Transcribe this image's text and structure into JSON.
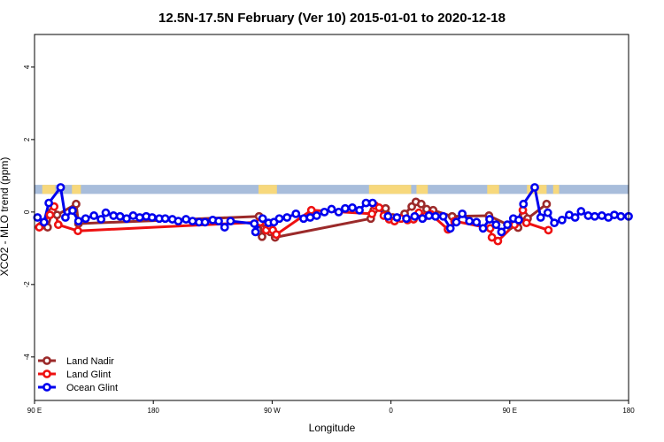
{
  "chart_data": {
    "type": "line",
    "title": "12.5N-17.5N February (Ver 10)   2015-01-01 to 2020-12-18",
    "xlabel": "Longitude",
    "ylabel": "XCO2 - MLO trend (ppm)",
    "xlim": [
      0,
      1
    ],
    "ylim": [
      -5.2,
      4.9
    ],
    "x_ticks": [
      {
        "value": 0.0,
        "label": "90 E"
      },
      {
        "value": 0.2,
        "label": "180"
      },
      {
        "value": 0.4,
        "label": "90 W"
      },
      {
        "value": 0.6,
        "label": "0"
      },
      {
        "value": 0.8,
        "label": "90 E"
      },
      {
        "value": 1.0,
        "label": "180"
      }
    ],
    "y_ticks": [
      -4,
      -2,
      0,
      2,
      4
    ],
    "y_tick_labels": [
      "-4",
      "-2",
      "0",
      "2",
      "4"
    ],
    "grid": false,
    "legend": "bottom-left",
    "land_band": {
      "y_range": [
        0.5,
        0.75
      ],
      "ocean_color": "#a8bddb",
      "land_color": "#f7d87c",
      "land_segments": [
        [
          0.013,
          0.035
        ],
        [
          0.063,
          0.078
        ],
        [
          0.377,
          0.408
        ],
        [
          0.563,
          0.634
        ],
        [
          0.643,
          0.662
        ],
        [
          0.762,
          0.782
        ],
        [
          0.829,
          0.862
        ],
        [
          0.873,
          0.883
        ]
      ]
    },
    "series": [
      {
        "name": "Land Nadir",
        "color": "#9b2a2a",
        "points": [
          [
            0.011,
            -0.38
          ],
          [
            0.022,
            -0.42
          ],
          [
            0.03,
            0.02
          ],
          [
            0.038,
            -0.08
          ],
          [
            0.07,
            0.22
          ],
          [
            0.074,
            -0.32
          ],
          [
            0.378,
            -0.12
          ],
          [
            0.383,
            -0.68
          ],
          [
            0.391,
            -0.44
          ],
          [
            0.397,
            -0.55
          ],
          [
            0.405,
            -0.7
          ],
          [
            0.566,
            -0.18
          ],
          [
            0.571,
            0.05
          ],
          [
            0.591,
            0.1
          ],
          [
            0.603,
            -0.15
          ],
          [
            0.623,
            -0.05
          ],
          [
            0.635,
            0.15
          ],
          [
            0.642,
            0.28
          ],
          [
            0.651,
            0.22
          ],
          [
            0.66,
            0.08
          ],
          [
            0.671,
            0.05
          ],
          [
            0.703,
            -0.12
          ],
          [
            0.765,
            -0.1
          ],
          [
            0.8,
            -0.38
          ],
          [
            0.814,
            -0.43
          ],
          [
            0.824,
            -0.1
          ],
          [
            0.83,
            -0.18
          ],
          [
            0.862,
            0.22
          ]
        ]
      },
      {
        "name": "Land Glint",
        "color": "#ee1111",
        "points": [
          [
            0.008,
            -0.42
          ],
          [
            0.026,
            -0.08
          ],
          [
            0.033,
            0.15
          ],
          [
            0.04,
            -0.35
          ],
          [
            0.073,
            -0.52
          ],
          [
            0.38,
            -0.28
          ],
          [
            0.39,
            -0.5
          ],
          [
            0.396,
            -0.38
          ],
          [
            0.401,
            -0.5
          ],
          [
            0.407,
            -0.62
          ],
          [
            0.466,
            0.05
          ],
          [
            0.568,
            -0.05
          ],
          [
            0.573,
            0.18
          ],
          [
            0.58,
            0.12
          ],
          [
            0.588,
            -0.1
          ],
          [
            0.597,
            -0.2
          ],
          [
            0.606,
            -0.25
          ],
          [
            0.617,
            -0.18
          ],
          [
            0.628,
            -0.22
          ],
          [
            0.638,
            -0.2
          ],
          [
            0.647,
            -0.02
          ],
          [
            0.657,
            -0.12
          ],
          [
            0.667,
            -0.06
          ],
          [
            0.696,
            -0.48
          ],
          [
            0.707,
            -0.25
          ],
          [
            0.767,
            -0.45
          ],
          [
            0.77,
            -0.7
          ],
          [
            0.78,
            -0.8
          ],
          [
            0.808,
            -0.35
          ],
          [
            0.822,
            0.05
          ],
          [
            0.828,
            -0.3
          ],
          [
            0.865,
            -0.5
          ]
        ]
      },
      {
        "name": "Ocean Glint",
        "color": "#0000ee",
        "points": [
          [
            0.005,
            -0.15
          ],
          [
            0.016,
            -0.28
          ],
          [
            0.024,
            0.25
          ],
          [
            0.044,
            0.68
          ],
          [
            0.052,
            -0.15
          ],
          [
            0.064,
            0.04
          ],
          [
            0.074,
            -0.25
          ],
          [
            0.086,
            -0.18
          ],
          [
            0.1,
            -0.1
          ],
          [
            0.112,
            -0.2
          ],
          [
            0.12,
            -0.02
          ],
          [
            0.133,
            -0.1
          ],
          [
            0.144,
            -0.12
          ],
          [
            0.155,
            -0.18
          ],
          [
            0.166,
            -0.1
          ],
          [
            0.177,
            -0.15
          ],
          [
            0.188,
            -0.12
          ],
          [
            0.198,
            -0.15
          ],
          [
            0.21,
            -0.18
          ],
          [
            0.22,
            -0.18
          ],
          [
            0.232,
            -0.2
          ],
          [
            0.242,
            -0.25
          ],
          [
            0.255,
            -0.2
          ],
          [
            0.266,
            -0.25
          ],
          [
            0.277,
            -0.28
          ],
          [
            0.287,
            -0.28
          ],
          [
            0.3,
            -0.22
          ],
          [
            0.31,
            -0.25
          ],
          [
            0.32,
            -0.42
          ],
          [
            0.33,
            -0.25
          ],
          [
            0.37,
            -0.32
          ],
          [
            0.372,
            -0.55
          ],
          [
            0.384,
            -0.18
          ],
          [
            0.394,
            -0.3
          ],
          [
            0.403,
            -0.28
          ],
          [
            0.412,
            -0.18
          ],
          [
            0.425,
            -0.15
          ],
          [
            0.44,
            -0.05
          ],
          [
            0.453,
            -0.18
          ],
          [
            0.464,
            -0.15
          ],
          [
            0.475,
            -0.1
          ],
          [
            0.488,
            0.0
          ],
          [
            0.5,
            0.08
          ],
          [
            0.512,
            0.0
          ],
          [
            0.523,
            0.1
          ],
          [
            0.535,
            0.12
          ],
          [
            0.547,
            0.05
          ],
          [
            0.558,
            0.25
          ],
          [
            0.569,
            0.25
          ],
          [
            0.595,
            -0.12
          ],
          [
            0.61,
            -0.15
          ],
          [
            0.626,
            -0.18
          ],
          [
            0.64,
            -0.12
          ],
          [
            0.653,
            -0.18
          ],
          [
            0.664,
            -0.1
          ],
          [
            0.675,
            -0.12
          ],
          [
            0.688,
            -0.12
          ],
          [
            0.7,
            -0.45
          ],
          [
            0.71,
            -0.28
          ],
          [
            0.72,
            -0.05
          ],
          [
            0.732,
            -0.25
          ],
          [
            0.744,
            -0.28
          ],
          [
            0.755,
            -0.45
          ],
          [
            0.766,
            -0.2
          ],
          [
            0.777,
            -0.35
          ],
          [
            0.786,
            -0.55
          ],
          [
            0.796,
            -0.35
          ],
          [
            0.806,
            -0.18
          ],
          [
            0.815,
            -0.22
          ],
          [
            0.823,
            0.22
          ],
          [
            0.842,
            0.68
          ],
          [
            0.852,
            -0.15
          ],
          [
            0.864,
            -0.02
          ],
          [
            0.875,
            -0.3
          ],
          [
            0.888,
            -0.22
          ],
          [
            0.9,
            -0.08
          ],
          [
            0.91,
            -0.15
          ],
          [
            0.92,
            0.02
          ],
          [
            0.932,
            -0.1
          ],
          [
            0.943,
            -0.12
          ],
          [
            0.955,
            -0.1
          ],
          [
            0.966,
            -0.15
          ],
          [
            0.976,
            -0.08
          ],
          [
            0.987,
            -0.12
          ],
          [
            1.0,
            -0.12
          ]
        ]
      }
    ]
  }
}
